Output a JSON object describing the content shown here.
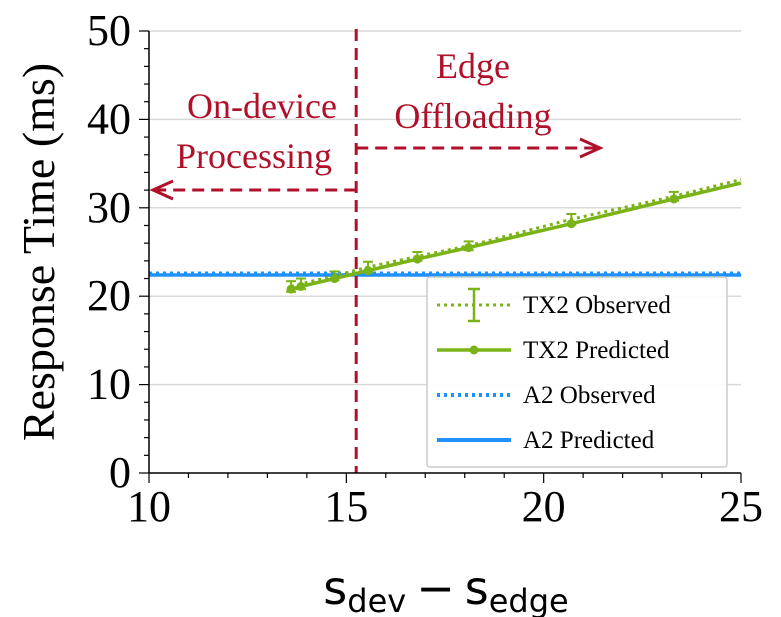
{
  "chart_data": {
    "type": "line",
    "xlabel": "s_dev − s_edge",
    "xlabel_parts": {
      "s1": "s",
      "sub1": "dev",
      "minus": "−",
      "s2": "s",
      "sub2": "edge"
    },
    "ylabel": "Response Time (ms)",
    "xlim": [
      10,
      25
    ],
    "ylim": [
      0,
      50
    ],
    "xticks": [
      10,
      15,
      20,
      25
    ],
    "xtick_labels": [
      "10",
      "15",
      "20",
      "25"
    ],
    "yticks": [
      0,
      10,
      20,
      30,
      40,
      50
    ],
    "ytick_labels": [
      "0",
      "10",
      "20",
      "30",
      "40",
      "50"
    ],
    "grid": "horizontal",
    "threshold_x": 15.25,
    "series": [
      {
        "name": "TX2 Observed",
        "color": "#7ab317",
        "style": "dotted",
        "errorbars": true,
        "x": [
          13.6,
          13.85,
          14.7,
          15.55,
          16.8,
          18.1,
          20.7,
          23.3,
          25.0
        ],
        "y": [
          21.1,
          21.4,
          22.3,
          23.3,
          24.5,
          25.7,
          28.7,
          31.3,
          33.2
        ],
        "err": [
          0.6,
          0.6,
          0.5,
          0.6,
          0.5,
          0.5,
          0.6,
          0.5,
          0.4
        ]
      },
      {
        "name": "TX2 Predicted",
        "color": "#7ab317",
        "style": "solid",
        "markers": true,
        "x": [
          13.6,
          13.85,
          14.7,
          15.55,
          16.8,
          18.1,
          20.7,
          23.3,
          25.0
        ],
        "y": [
          20.8,
          21.1,
          22.0,
          22.9,
          24.2,
          25.5,
          28.2,
          31.0,
          32.8
        ]
      },
      {
        "name": "A2 Observed",
        "color": "#1e90ff",
        "style": "dotted",
        "x": [
          10,
          25
        ],
        "y": [
          22.6,
          22.6
        ]
      },
      {
        "name": "A2 Predicted",
        "color": "#1e90ff",
        "style": "solid",
        "x": [
          10,
          25
        ],
        "y": [
          22.4,
          22.4
        ]
      }
    ],
    "annotations": {
      "left_line1": "On-device",
      "left_line2": "Processing",
      "right_line1": "Edge",
      "right_line2": "Offloading",
      "color": "#b0102a"
    },
    "legend_position": "lower-right"
  }
}
